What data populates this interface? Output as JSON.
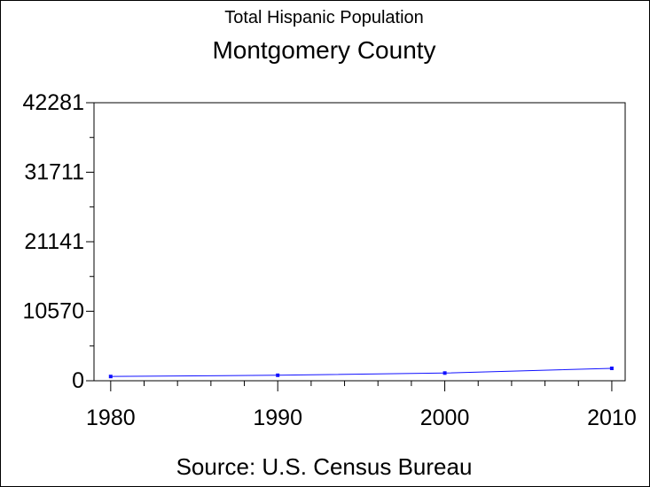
{
  "title": "Total Hispanic Population",
  "subtitle": "Montgomery County",
  "footer": "Source: U.S. Census Bureau",
  "colors": {
    "series": "#1010ff",
    "axis": "#000000",
    "background": "#ffffff"
  },
  "chart_data": {
    "type": "line",
    "title": "Total Hispanic Population",
    "subtitle": "Montgomery County",
    "xlabel": "",
    "ylabel": "",
    "x": [
      1980,
      1990,
      2000,
      2010
    ],
    "series": [
      {
        "values": [
          650,
          830,
          1170,
          1880
        ]
      }
    ],
    "xlim": [
      1979,
      2010.8
    ],
    "ylim": [
      0,
      42281
    ],
    "x_ticks": [
      1980,
      1990,
      2000,
      2010
    ],
    "y_ticks": [
      0,
      10570,
      21141,
      31711,
      42281
    ],
    "grid": false,
    "legend": "none",
    "source": "Source: U.S. Census Bureau"
  }
}
